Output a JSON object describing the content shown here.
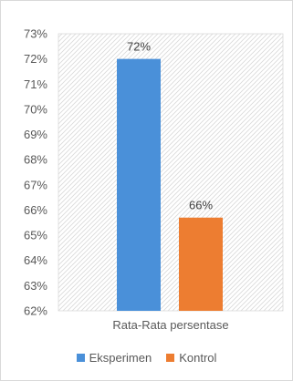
{
  "chart_data": {
    "type": "bar",
    "categories": [
      "Rata-Rata persentase"
    ],
    "series": [
      {
        "name": "Eksperimen",
        "values": [
          72
        ],
        "color": "#4a90d9",
        "label": "72%"
      },
      {
        "name": "Kontrol",
        "values": [
          65.7
        ],
        "color": "#ed7d31",
        "label": "66%"
      }
    ],
    "ylim": [
      62,
      73
    ],
    "yticks": [
      "62%",
      "63%",
      "64%",
      "65%",
      "66%",
      "67%",
      "68%",
      "69%",
      "70%",
      "71%",
      "72%",
      "73%"
    ],
    "grid": false,
    "plot_background": "diagonal hatch",
    "legend_position": "bottom"
  }
}
